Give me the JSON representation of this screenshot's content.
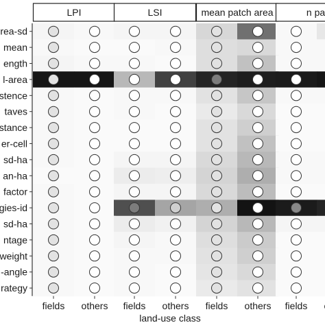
{
  "chart_data": {
    "type": "heatmap",
    "title": "",
    "xlabel": "land-use class",
    "ylabel": "",
    "panels": [
      "LPI",
      "LSI",
      "mean patch area",
      "n patch"
    ],
    "panel_labels_visible": [
      "LPI",
      "LSI",
      "mean patch area",
      "n patc"
    ],
    "categories": [
      "fields",
      "others"
    ],
    "rows": [
      "rea-sd",
      "mean",
      "ength",
      "l-area",
      "stence",
      "taves",
      "stance",
      "er-cell",
      "sd-ha",
      "an-ha",
      "factor",
      "gies-id",
      "sd-ha",
      "ntage",
      "weight",
      "-angle",
      "rategy"
    ],
    "value_range": [
      0,
      1
    ],
    "grid": false,
    "legend": "none",
    "colors": {
      "cell_scale": [
        "#ffffff",
        "#111111"
      ],
      "strip_fill": "#ffffff",
      "strip_border": "#222222",
      "marker_stroke": "#333333",
      "axis_color": "#333333",
      "text_color": "#1a1a1a"
    },
    "cells": [
      [
        [
          0.04,
          0.03
        ],
        [
          0.04,
          0.04
        ],
        [
          0.17,
          0.6
        ],
        [
          0.03,
          0.1
        ]
      ],
      [
        [
          0.03,
          0.02
        ],
        [
          0.02,
          0.03
        ],
        [
          0.14,
          0.16
        ],
        [
          0.03,
          0.03
        ]
      ],
      [
        [
          0.04,
          0.03
        ],
        [
          0.03,
          0.02
        ],
        [
          0.14,
          0.26
        ],
        [
          0.03,
          0.03
        ]
      ],
      [
        [
          0.98,
          0.98
        ],
        [
          0.3,
          0.8
        ],
        [
          0.92,
          0.95
        ],
        [
          0.96,
          0.98
        ]
      ],
      [
        [
          0.03,
          0.02
        ],
        [
          0.03,
          0.03
        ],
        [
          0.12,
          0.24
        ],
        [
          0.03,
          0.03
        ]
      ],
      [
        [
          0.03,
          0.02
        ],
        [
          0.03,
          0.02
        ],
        [
          0.09,
          0.16
        ],
        [
          0.02,
          0.02
        ]
      ],
      [
        [
          0.03,
          0.02
        ],
        [
          0.02,
          0.02
        ],
        [
          0.12,
          0.2
        ],
        [
          0.02,
          0.02
        ]
      ],
      [
        [
          0.03,
          0.02
        ],
        [
          0.02,
          0.02
        ],
        [
          0.12,
          0.26
        ],
        [
          0.02,
          0.02
        ]
      ],
      [
        [
          0.03,
          0.02
        ],
        [
          0.04,
          0.04
        ],
        [
          0.16,
          0.3
        ],
        [
          0.03,
          0.03
        ]
      ],
      [
        [
          0.02,
          0.02
        ],
        [
          0.08,
          0.07
        ],
        [
          0.18,
          0.34
        ],
        [
          0.03,
          0.03
        ]
      ],
      [
        [
          0.03,
          0.02
        ],
        [
          0.04,
          0.04
        ],
        [
          0.16,
          0.28
        ],
        [
          0.02,
          0.02
        ]
      ],
      [
        [
          0.03,
          0.02
        ],
        [
          0.74,
          0.38
        ],
        [
          0.34,
          0.99
        ],
        [
          0.96,
          0.92
        ]
      ],
      [
        [
          0.03,
          0.02
        ],
        [
          0.08,
          0.06
        ],
        [
          0.18,
          0.3
        ],
        [
          0.04,
          0.04
        ]
      ],
      [
        [
          0.03,
          0.02
        ],
        [
          0.04,
          0.03
        ],
        [
          0.14,
          0.22
        ],
        [
          0.02,
          0.02
        ]
      ],
      [
        [
          0.03,
          0.02
        ],
        [
          0.03,
          0.03
        ],
        [
          0.12,
          0.2
        ],
        [
          0.02,
          0.02
        ]
      ],
      [
        [
          0.03,
          0.02
        ],
        [
          0.03,
          0.02
        ],
        [
          0.11,
          0.16
        ],
        [
          0.02,
          0.02
        ]
      ],
      [
        [
          0.03,
          0.02
        ],
        [
          0.03,
          0.02
        ],
        [
          0.09,
          0.12
        ],
        [
          0.02,
          0.02
        ]
      ]
    ],
    "markers": [
      [
        [
          0.12,
          0.0
        ],
        [
          0.0,
          0.0
        ],
        [
          0.12,
          0.0
        ],
        [
          0.0,
          0.0
        ]
      ],
      [
        [
          0.12,
          0.0
        ],
        [
          0.0,
          0.0
        ],
        [
          0.12,
          0.0
        ],
        [
          0.0,
          0.0
        ]
      ],
      [
        [
          0.12,
          0.0
        ],
        [
          0.0,
          0.0
        ],
        [
          0.12,
          0.0
        ],
        [
          0.0,
          0.0
        ]
      ],
      [
        [
          0.12,
          0.0
        ],
        [
          0.0,
          0.0
        ],
        [
          0.55,
          0.0
        ],
        [
          0.0,
          0.0
        ]
      ],
      [
        [
          0.12,
          0.0
        ],
        [
          0.0,
          0.0
        ],
        [
          0.12,
          0.0
        ],
        [
          0.0,
          0.0
        ]
      ],
      [
        [
          0.12,
          0.0
        ],
        [
          0.0,
          0.0
        ],
        [
          0.12,
          0.0
        ],
        [
          0.0,
          0.0
        ]
      ],
      [
        [
          0.12,
          0.0
        ],
        [
          0.0,
          0.0
        ],
        [
          0.12,
          0.0
        ],
        [
          0.0,
          0.0
        ]
      ],
      [
        [
          0.12,
          0.0
        ],
        [
          0.0,
          0.0
        ],
        [
          0.12,
          0.0
        ],
        [
          0.0,
          0.0
        ]
      ],
      [
        [
          0.12,
          0.0
        ],
        [
          0.0,
          0.0
        ],
        [
          0.12,
          0.0
        ],
        [
          0.0,
          0.0
        ]
      ],
      [
        [
          0.12,
          0.0
        ],
        [
          0.0,
          0.0
        ],
        [
          0.12,
          0.0
        ],
        [
          0.0,
          0.0
        ]
      ],
      [
        [
          0.12,
          0.0
        ],
        [
          0.0,
          0.0
        ],
        [
          0.12,
          0.0
        ],
        [
          0.0,
          0.0
        ]
      ],
      [
        [
          0.12,
          0.0
        ],
        [
          0.55,
          0.2
        ],
        [
          0.12,
          0.0
        ],
        [
          0.5,
          0.0
        ]
      ],
      [
        [
          0.12,
          0.0
        ],
        [
          0.0,
          0.0
        ],
        [
          0.12,
          0.0
        ],
        [
          0.0,
          0.0
        ]
      ],
      [
        [
          0.12,
          0.0
        ],
        [
          0.0,
          0.0
        ],
        [
          0.12,
          0.0
        ],
        [
          0.0,
          0.0
        ]
      ],
      [
        [
          0.12,
          0.0
        ],
        [
          0.0,
          0.0
        ],
        [
          0.12,
          0.0
        ],
        [
          0.0,
          0.0
        ]
      ],
      [
        [
          0.12,
          0.0
        ],
        [
          0.0,
          0.0
        ],
        [
          0.12,
          0.0
        ],
        [
          0.0,
          0.0
        ]
      ],
      [
        [
          0.12,
          0.0
        ],
        [
          0.0,
          0.0
        ],
        [
          0.12,
          0.0
        ],
        [
          0.0,
          0.0
        ]
      ]
    ]
  }
}
